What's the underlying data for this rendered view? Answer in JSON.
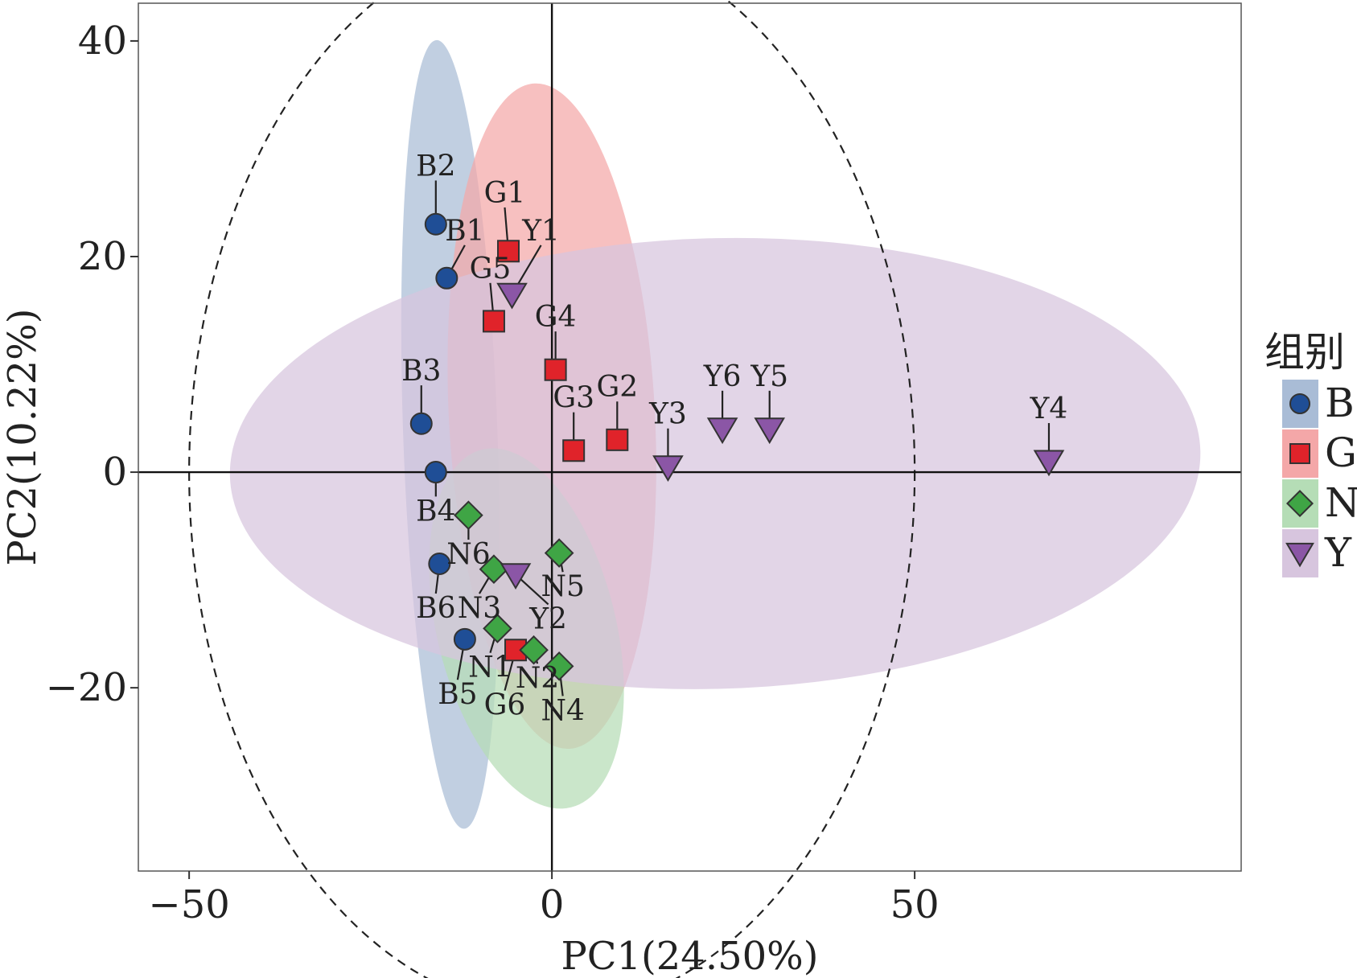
{
  "chart_data": {
    "type": "scatter",
    "xlabel": "PC1(24.50%)",
    "ylabel": "PC2(10.22%)",
    "xlim": [
      -57,
      95
    ],
    "ylim": [
      -37,
      43.5
    ],
    "xticks": [
      -50,
      0,
      50
    ],
    "yticks": [
      -20,
      0,
      20,
      40
    ],
    "xtick_labels": [
      "−50",
      "0",
      "50"
    ],
    "ytick_labels": [
      "−20",
      "0",
      "20",
      "40"
    ],
    "grid": false,
    "reference_lines": {
      "x": 0,
      "y": 0
    },
    "reference_circle": {
      "cx": 0,
      "cy": 0,
      "r": 50,
      "style": "dashed"
    },
    "legend": {
      "title": "组别",
      "position": "right",
      "entries": [
        {
          "group": "B",
          "label": "B",
          "marker": "circle",
          "color": "#1f4e96",
          "fill": "#a9bcd6"
        },
        {
          "group": "G",
          "label": "G",
          "marker": "square",
          "color": "#e0232a",
          "fill": "#f4a7a8"
        },
        {
          "group": "N",
          "label": "N",
          "marker": "diamond",
          "color": "#3fa545",
          "fill": "#b5ddb6"
        },
        {
          "group": "Y",
          "label": "Y",
          "marker": "triangle-down",
          "color": "#8b56a6",
          "fill": "#d7c5de"
        }
      ]
    },
    "series": [
      {
        "name": "B",
        "marker": "circle",
        "color": "#1f4e96",
        "points": [
          {
            "label": "B1",
            "x": -14.5,
            "y": 18,
            "lx": -12,
            "ly": 21.5
          },
          {
            "label": "B2",
            "x": -16,
            "y": 23,
            "lx": -16,
            "ly": 27.5
          },
          {
            "label": "B3",
            "x": -18,
            "y": 4.5,
            "lx": -18,
            "ly": 8.5
          },
          {
            "label": "B4",
            "x": -16,
            "y": 0,
            "lx": -16,
            "ly": -4.5
          },
          {
            "label": "B5",
            "x": -12,
            "y": -15.5,
            "lx": -13,
            "ly": -21.5
          },
          {
            "label": "B6",
            "x": -15.5,
            "y": -8.5,
            "lx": -16,
            "ly": -13.5
          }
        ],
        "ellipse": {
          "cx": -14,
          "cy": 3.5,
          "rx": 6.5,
          "ry": 36.6,
          "angle": -2
        }
      },
      {
        "name": "G",
        "marker": "square",
        "color": "#e0232a",
        "points": [
          {
            "label": "G1",
            "x": -6,
            "y": 20.5,
            "lx": -6.5,
            "ly": 25
          },
          {
            "label": "G2",
            "x": 9,
            "y": 3,
            "lx": 9,
            "ly": 7
          },
          {
            "label": "G3",
            "x": 3,
            "y": 2,
            "lx": 3,
            "ly": 6
          },
          {
            "label": "G4",
            "x": 0.5,
            "y": 9.5,
            "lx": 0.5,
            "ly": 13.5
          },
          {
            "label": "G5",
            "x": -8,
            "y": 14,
            "lx": -8.5,
            "ly": 18
          },
          {
            "label": "G6",
            "x": -5,
            "y": -16.5,
            "lx": -6.5,
            "ly": -22.5
          }
        ],
        "ellipse": {
          "cx": 0,
          "cy": 5.2,
          "rx": 14.2,
          "ry": 30.9,
          "angle": -3
        }
      },
      {
        "name": "N",
        "marker": "diamond",
        "color": "#3fa545",
        "points": [
          {
            "label": "N1",
            "x": -7.5,
            "y": -14.5,
            "lx": -8.5,
            "ly": -19
          },
          {
            "label": "N2",
            "x": -2.5,
            "y": -16.5,
            "lx": -2,
            "ly": -20
          },
          {
            "label": "N3",
            "x": -8,
            "y": -9,
            "lx": -10,
            "ly": -13.5
          },
          {
            "label": "N4",
            "x": 1,
            "y": -18,
            "lx": 1.5,
            "ly": -23
          },
          {
            "label": "N5",
            "x": 1,
            "y": -7.5,
            "lx": 1.5,
            "ly": -11.5
          },
          {
            "label": "N6",
            "x": -11.5,
            "y": -4,
            "lx": -11.5,
            "ly": -8.5
          }
        ],
        "ellipse": {
          "cx": -3.5,
          "cy": -14.5,
          "rx": 12.3,
          "ry": 17.1,
          "angle": -14
        }
      },
      {
        "name": "Y",
        "marker": "triangle-down",
        "color": "#8b56a6",
        "points": [
          {
            "label": "Y1",
            "x": -5.5,
            "y": 16.5,
            "lx": -1.5,
            "ly": 21.5
          },
          {
            "label": "Y2",
            "x": -5,
            "y": -9.5,
            "lx": -0.5,
            "ly": -14.5
          },
          {
            "label": "Y3",
            "x": 16,
            "y": 0.5,
            "lx": 16,
            "ly": 4.5
          },
          {
            "label": "Y4",
            "x": 68.5,
            "y": 1,
            "lx": 68.5,
            "ly": 5
          },
          {
            "label": "Y5",
            "x": 30,
            "y": 4,
            "lx": 30,
            "ly": 8
          },
          {
            "label": "Y6",
            "x": 23.5,
            "y": 4,
            "lx": 23.5,
            "ly": 8
          }
        ],
        "ellipse": {
          "cx": 22.5,
          "cy": 0.8,
          "rx": 66.9,
          "ry": 20.9,
          "angle": -1.5
        }
      }
    ]
  }
}
